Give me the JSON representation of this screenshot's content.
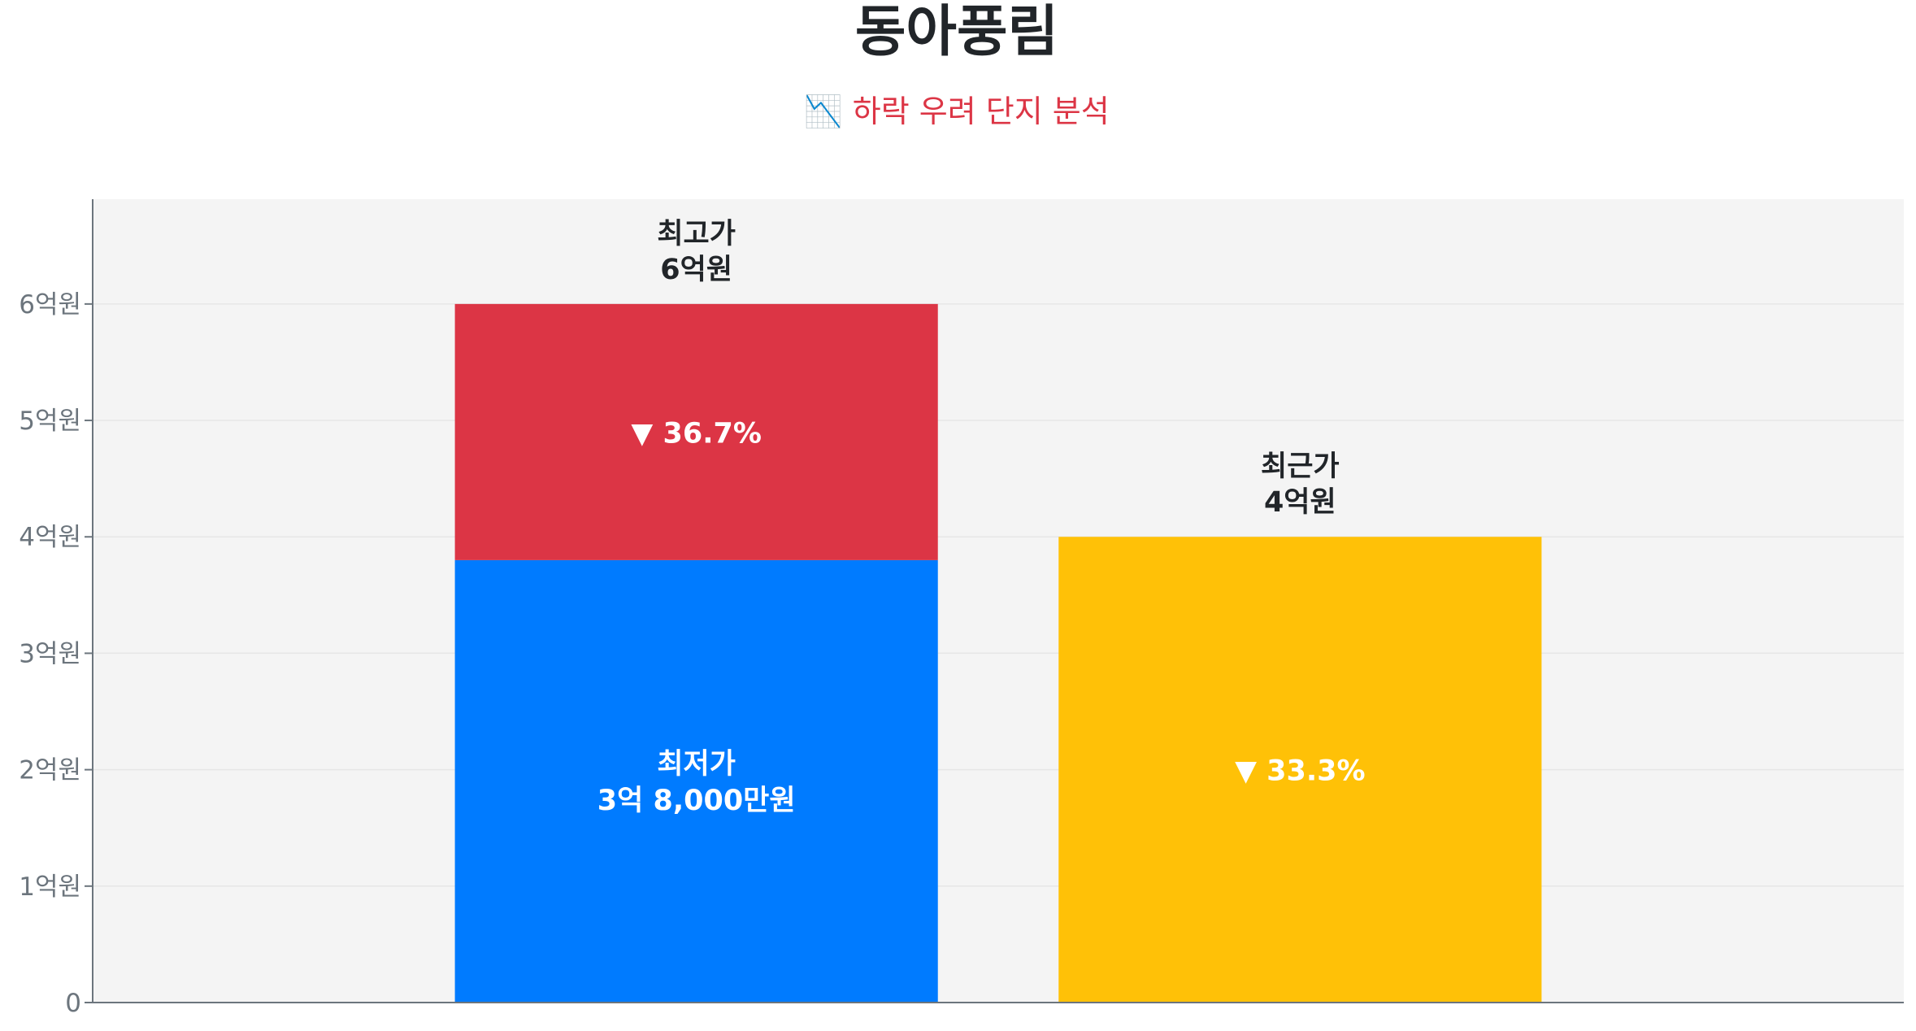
{
  "title": "동아풍림",
  "subtitle": "📉 하락 우려 단지 분석",
  "colors": {
    "low": "#007bff",
    "drop": "#dc3545",
    "recent": "#ffc107",
    "plot_bg": "#f4f4f4",
    "axis": "#6c757d"
  },
  "chart_data": {
    "type": "bar",
    "stacked": true,
    "ylim": [
      0,
      6.9
    ],
    "y_unit": "억원",
    "grid": true,
    "yticks": [
      {
        "value": 0,
        "label": "0"
      },
      {
        "value": 1,
        "label": "1억원"
      },
      {
        "value": 2,
        "label": "2억원"
      },
      {
        "value": 3,
        "label": "3억원"
      },
      {
        "value": 4,
        "label": "4억원"
      },
      {
        "value": 5,
        "label": "5억원"
      },
      {
        "value": 6,
        "label": "6억원"
      }
    ],
    "bars": [
      {
        "segments": [
          {
            "from": 0,
            "to": 3.8,
            "color": "#007bff",
            "label_line1": "최저가",
            "label_line2": "3억 8,000만원"
          },
          {
            "from": 3.8,
            "to": 6,
            "color": "#dc3545",
            "label_line1": "▼ 36.7%"
          }
        ],
        "top_label_line1": "최고가",
        "top_label_line2": "6억원"
      },
      {
        "segments": [
          {
            "from": 0,
            "to": 4,
            "color": "#ffc107",
            "label_line1": "▼ 33.3%"
          }
        ],
        "top_label_line1": "최근가",
        "top_label_line2": "4억원"
      }
    ]
  }
}
